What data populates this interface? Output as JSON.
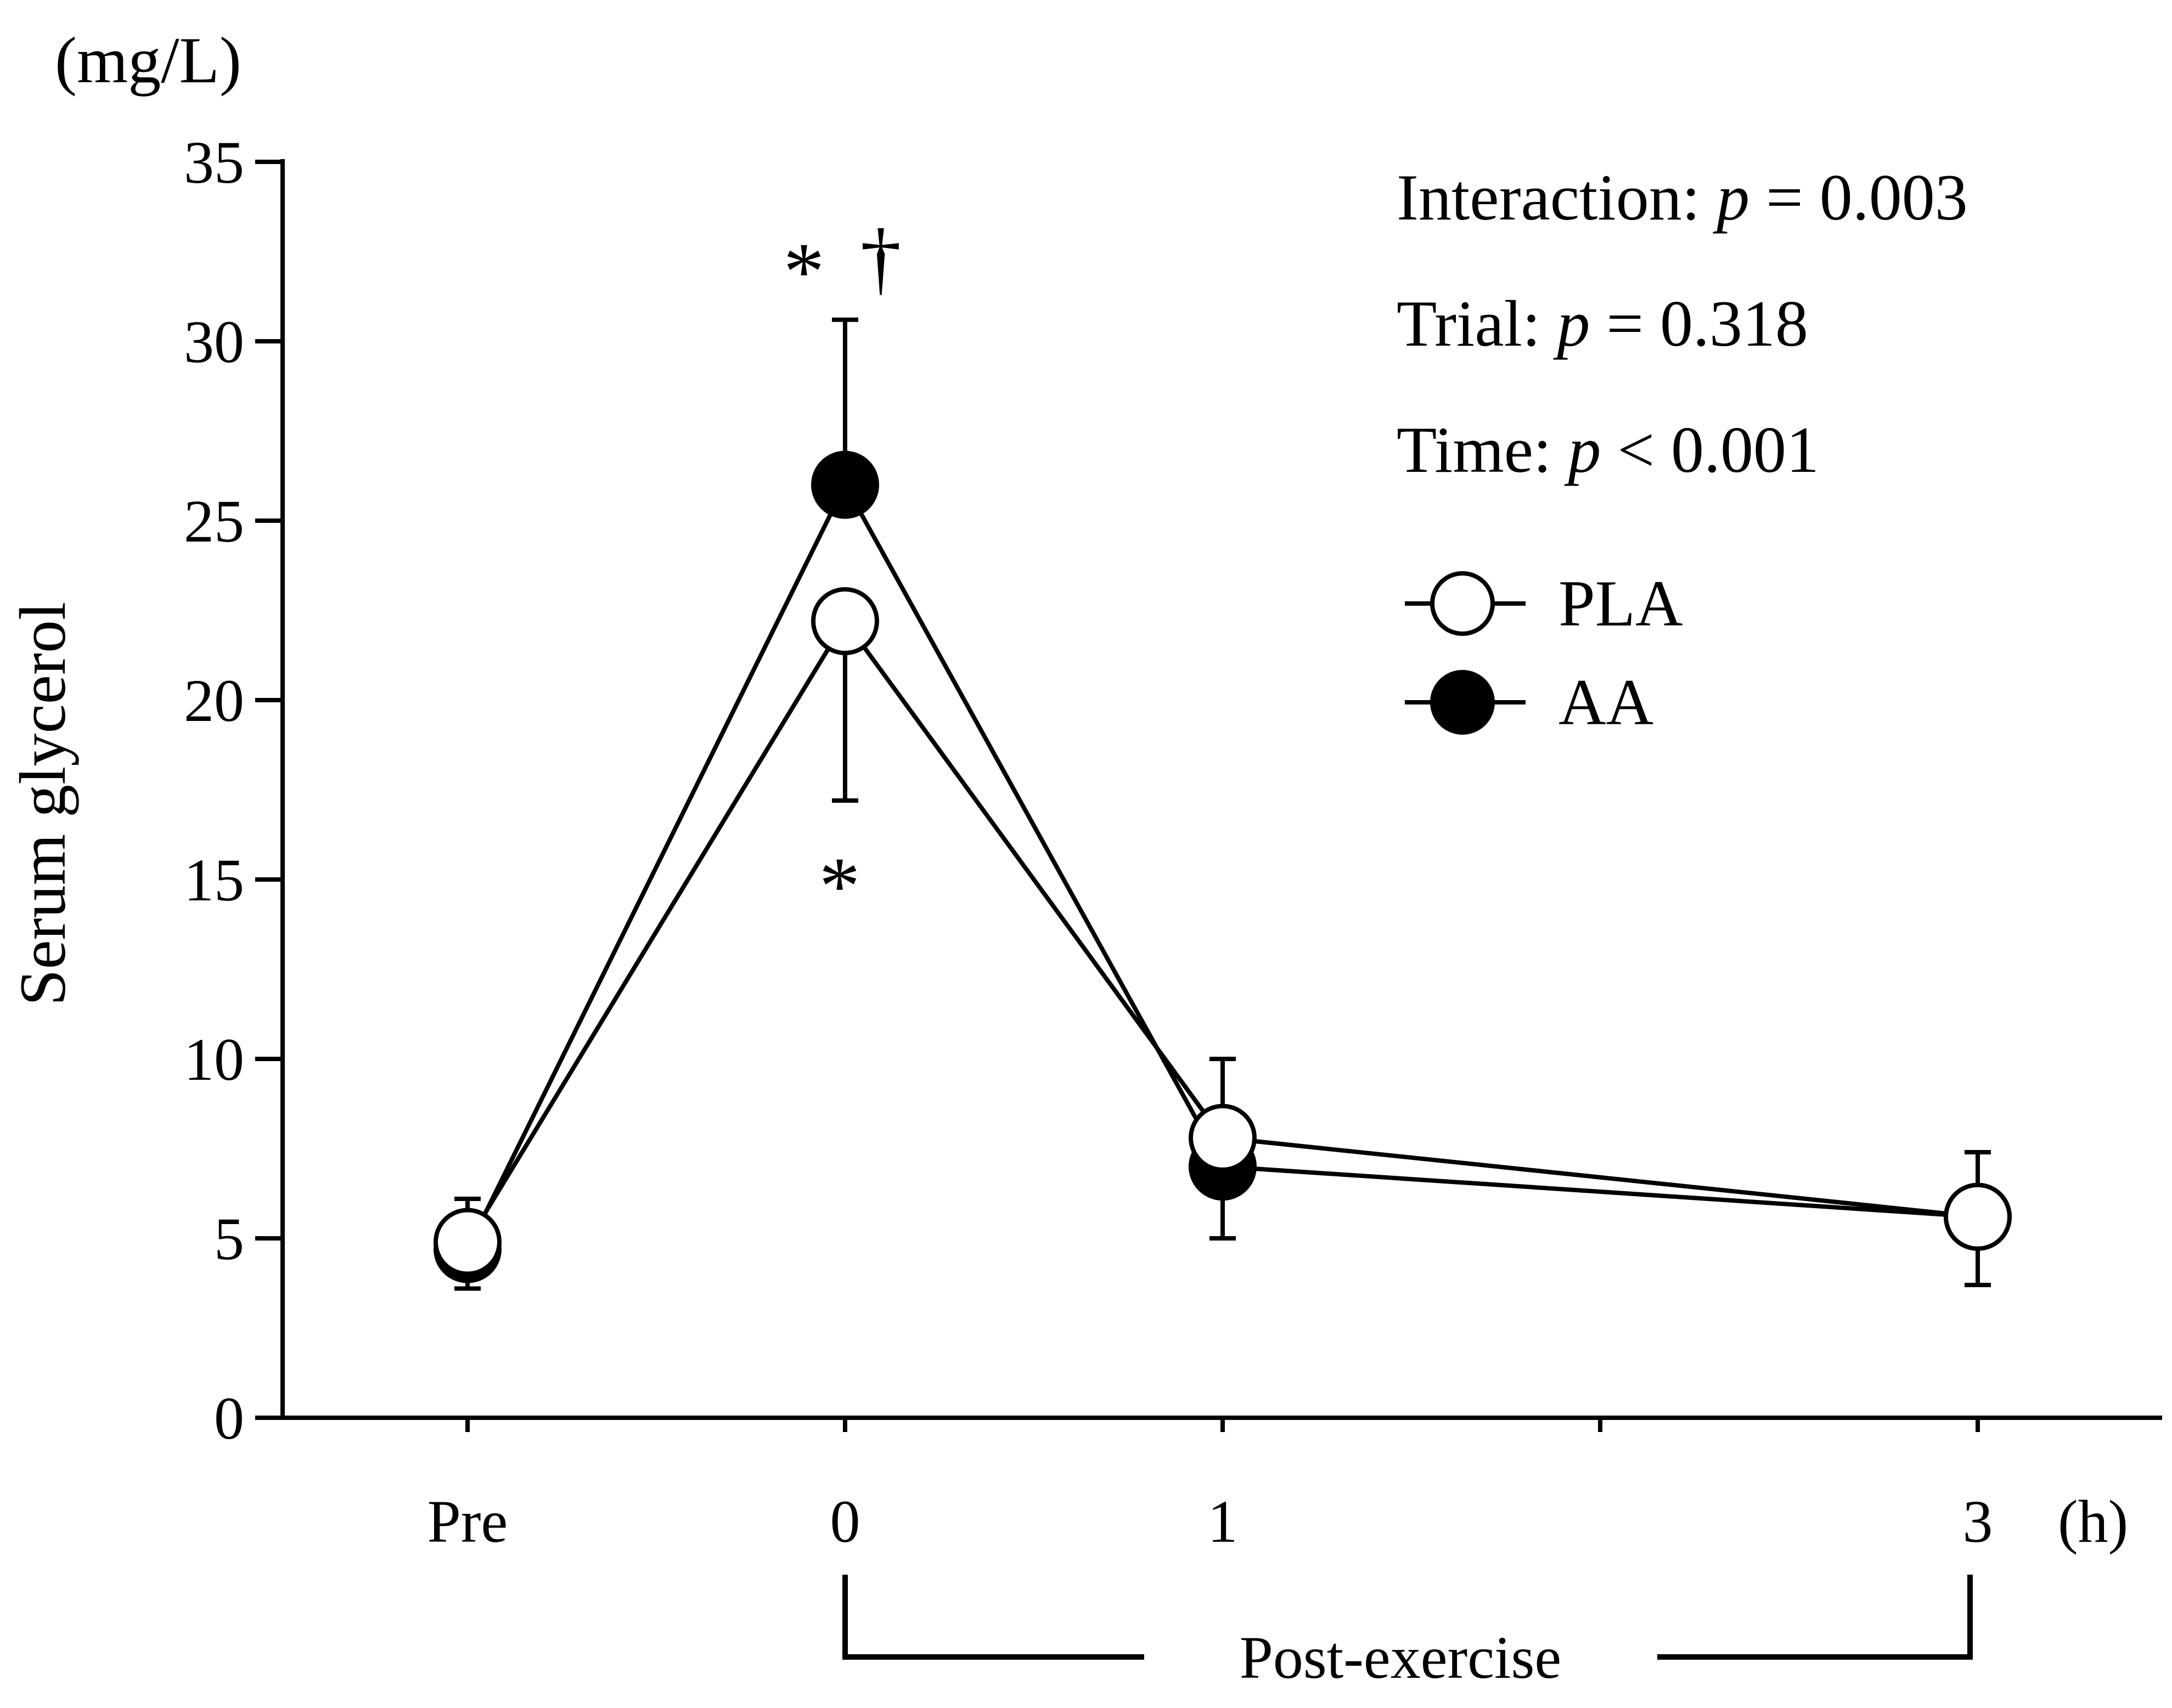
{
  "chart_data": {
    "type": "line",
    "unit_label": "(mg/L)",
    "ylabel": "Serum glycerol",
    "ylim": [
      0,
      35
    ],
    "yticks": [
      "0",
      "5",
      "10",
      "15",
      "20",
      "25",
      "30",
      "35"
    ],
    "categories": [
      "Pre",
      "0",
      "1",
      "3"
    ],
    "x_positions": [
      -1,
      0,
      1,
      3
    ],
    "x_unit": "(h)",
    "bracket_label": "Post-exercise",
    "series": [
      {
        "name": "PLA",
        "marker": "open-circle",
        "values": [
          4.9,
          22.2,
          7.8,
          5.6
        ],
        "errors": [
          1.3,
          5.0,
          2.8,
          1.9
        ]
      },
      {
        "name": "AA",
        "marker": "filled-circle",
        "values": [
          4.7,
          26.0,
          7.0,
          5.6
        ],
        "errors": [
          1.4,
          4.6,
          3.0,
          1.8
        ]
      }
    ],
    "stats": {
      "interaction": {
        "label": "Interaction:",
        "p": "p",
        "value": "= 0.003"
      },
      "trial": {
        "label": "Trial:",
        "p": "p",
        "value": "= 0.318"
      },
      "time": {
        "label": "Time:",
        "p": "p",
        "value": "< 0.001"
      }
    },
    "annotations": {
      "aa_peak_asterisk": "*",
      "aa_peak_dagger": "†",
      "pla_peak_asterisk": "*"
    }
  }
}
